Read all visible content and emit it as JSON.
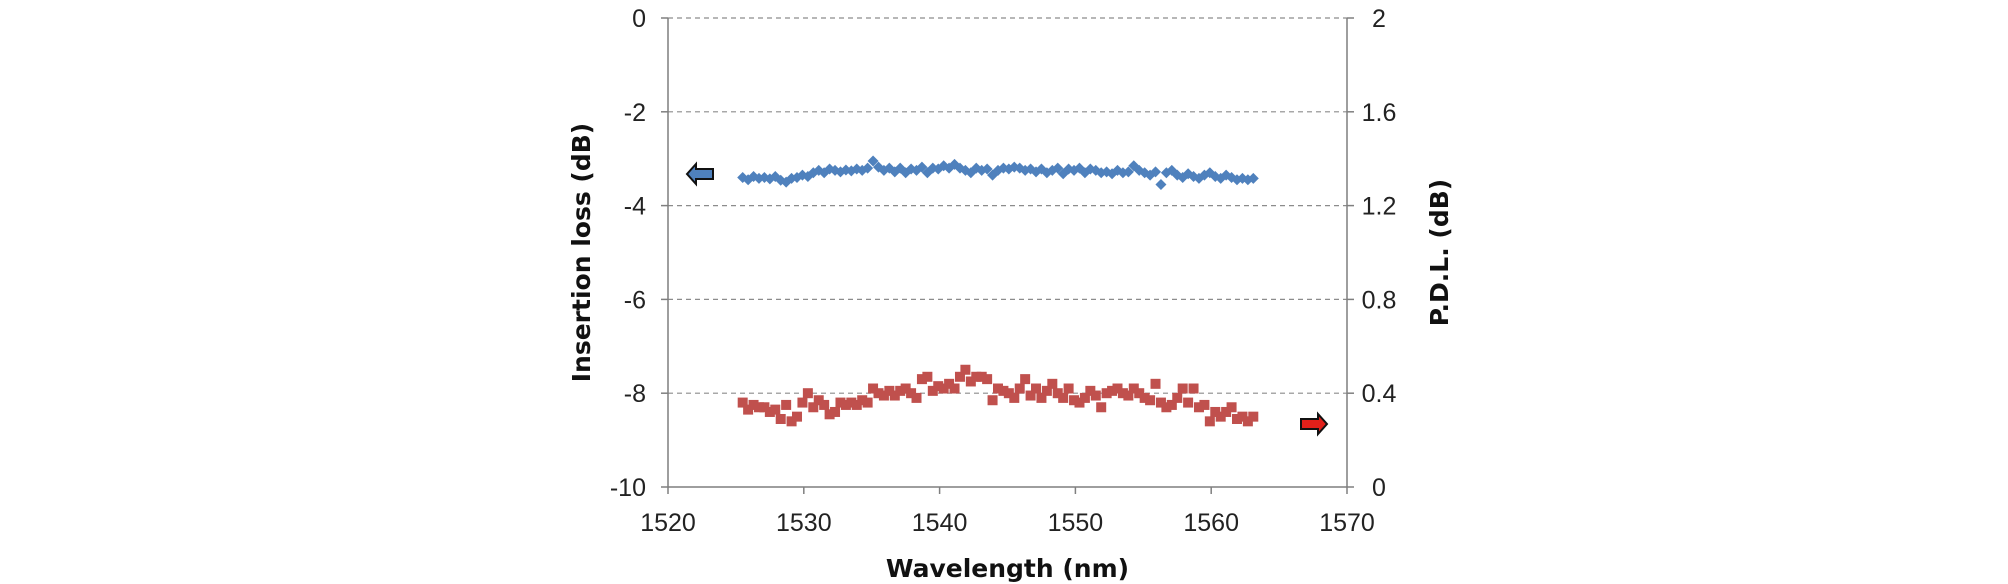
{
  "chart_data": {
    "type": "scatter",
    "title": "",
    "xlabel": "Wavelength (nm)",
    "ylabel": "Insertion loss (dB)",
    "y2label": "P.D.L. (dB)",
    "xlim": [
      1520,
      1570
    ],
    "ylim": [
      -10,
      0
    ],
    "y2lim": [
      0,
      2
    ],
    "xticks": [
      "1520",
      "1530",
      "1540",
      "1550",
      "1560",
      "1570"
    ],
    "yticks": [
      "0",
      "-2",
      "-4",
      "-6",
      "-8",
      "-10"
    ],
    "y2ticks": [
      "2",
      "1.6",
      "1.2",
      "0.8",
      "0.4",
      "0"
    ],
    "grid": "horizontal dashed",
    "legend": "none; arrows point to axes",
    "series": [
      {
        "axis": "left",
        "marker": "diamond",
        "color": "#4f81bd",
        "arrow_direction": "left",
        "x": [
          1525.5,
          1525.9,
          1526.3,
          1526.7,
          1527.1,
          1527.5,
          1527.9,
          1528.3,
          1528.7,
          1529.1,
          1529.5,
          1529.9,
          1530.3,
          1530.7,
          1531.1,
          1531.5,
          1531.9,
          1532.3,
          1532.7,
          1533.1,
          1533.5,
          1533.9,
          1534.3,
          1534.7,
          1535.1,
          1535.5,
          1535.9,
          1536.3,
          1536.7,
          1537.1,
          1537.5,
          1537.9,
          1538.3,
          1538.7,
          1539.1,
          1539.5,
          1539.9,
          1540.3,
          1540.7,
          1541.1,
          1541.5,
          1541.9,
          1542.3,
          1542.7,
          1543.1,
          1543.5,
          1543.9,
          1544.3,
          1544.7,
          1545.1,
          1545.5,
          1545.9,
          1546.3,
          1546.7,
          1547.1,
          1547.5,
          1547.9,
          1548.3,
          1548.7,
          1549.1,
          1549.5,
          1549.9,
          1550.3,
          1550.7,
          1551.1,
          1551.5,
          1551.9,
          1552.3,
          1552.7,
          1553.1,
          1553.5,
          1553.9,
          1554.3,
          1554.7,
          1555.1,
          1555.5,
          1555.9,
          1556.3,
          1556.7,
          1557.1,
          1557.5,
          1557.9,
          1558.3,
          1558.7,
          1559.1,
          1559.5,
          1559.9,
          1560.3,
          1560.7,
          1561.1,
          1561.5,
          1561.9,
          1562.3,
          1562.7,
          1563.1
        ],
        "values": [
          -3.4,
          -3.45,
          -3.38,
          -3.42,
          -3.4,
          -3.43,
          -3.38,
          -3.46,
          -3.5,
          -3.42,
          -3.4,
          -3.35,
          -3.38,
          -3.3,
          -3.25,
          -3.3,
          -3.22,
          -3.25,
          -3.28,
          -3.24,
          -3.26,
          -3.22,
          -3.25,
          -3.2,
          -3.05,
          -3.18,
          -3.25,
          -3.2,
          -3.28,
          -3.2,
          -3.3,
          -3.22,
          -3.25,
          -3.18,
          -3.3,
          -3.2,
          -3.22,
          -3.15,
          -3.2,
          -3.12,
          -3.2,
          -3.25,
          -3.3,
          -3.2,
          -3.25,
          -3.22,
          -3.35,
          -3.25,
          -3.2,
          -3.22,
          -3.18,
          -3.2,
          -3.25,
          -3.22,
          -3.28,
          -3.22,
          -3.3,
          -3.25,
          -3.2,
          -3.32,
          -3.22,
          -3.25,
          -3.2,
          -3.3,
          -3.22,
          -3.25,
          -3.3,
          -3.28,
          -3.32,
          -3.25,
          -3.3,
          -3.28,
          -3.15,
          -3.25,
          -3.3,
          -3.35,
          -3.28,
          -3.55,
          -3.3,
          -3.25,
          -3.35,
          -3.4,
          -3.32,
          -3.38,
          -3.42,
          -3.35,
          -3.3,
          -3.38,
          -3.42,
          -3.35,
          -3.4,
          -3.45,
          -3.42,
          -3.45,
          -3.42
        ]
      },
      {
        "axis": "right",
        "marker": "square",
        "color": "#c0504d",
        "arrow_direction": "right",
        "x": [
          1525.5,
          1525.9,
          1526.3,
          1526.7,
          1527.1,
          1527.5,
          1527.9,
          1528.3,
          1528.7,
          1529.1,
          1529.5,
          1529.9,
          1530.3,
          1530.7,
          1531.1,
          1531.5,
          1531.9,
          1532.3,
          1532.7,
          1533.1,
          1533.5,
          1533.9,
          1534.3,
          1534.7,
          1535.1,
          1535.5,
          1535.9,
          1536.3,
          1536.7,
          1537.1,
          1537.5,
          1537.9,
          1538.3,
          1538.7,
          1539.1,
          1539.5,
          1539.9,
          1540.3,
          1540.7,
          1541.1,
          1541.5,
          1541.9,
          1542.3,
          1542.7,
          1543.1,
          1543.5,
          1543.9,
          1544.3,
          1544.7,
          1545.1,
          1545.5,
          1545.9,
          1546.3,
          1546.7,
          1547.1,
          1547.5,
          1547.9,
          1548.3,
          1548.7,
          1549.1,
          1549.5,
          1549.9,
          1550.3,
          1550.7,
          1551.1,
          1551.5,
          1551.9,
          1552.3,
          1552.7,
          1553.1,
          1553.5,
          1553.9,
          1554.3,
          1554.7,
          1555.1,
          1555.5,
          1555.9,
          1556.3,
          1556.7,
          1557.1,
          1557.5,
          1557.9,
          1558.3,
          1558.7,
          1559.1,
          1559.5,
          1559.9,
          1560.3,
          1560.7,
          1561.1,
          1561.5,
          1561.9,
          1562.3,
          1562.7,
          1563.1
        ],
        "values": [
          0.36,
          0.33,
          0.35,
          0.34,
          0.34,
          0.32,
          0.33,
          0.29,
          0.35,
          0.28,
          0.3,
          0.36,
          0.4,
          0.34,
          0.37,
          0.35,
          0.31,
          0.32,
          0.36,
          0.35,
          0.36,
          0.35,
          0.37,
          0.36,
          0.42,
          0.4,
          0.39,
          0.41,
          0.39,
          0.41,
          0.42,
          0.4,
          0.38,
          0.46,
          0.47,
          0.41,
          0.43,
          0.42,
          0.44,
          0.42,
          0.47,
          0.5,
          0.45,
          0.47,
          0.47,
          0.46,
          0.37,
          0.42,
          0.41,
          0.4,
          0.38,
          0.42,
          0.46,
          0.39,
          0.42,
          0.38,
          0.41,
          0.44,
          0.4,
          0.38,
          0.42,
          0.37,
          0.36,
          0.38,
          0.41,
          0.39,
          0.34,
          0.4,
          0.41,
          0.42,
          0.4,
          0.39,
          0.42,
          0.4,
          0.38,
          0.37,
          0.44,
          0.36,
          0.34,
          0.35,
          0.38,
          0.42,
          0.36,
          0.42,
          0.34,
          0.35,
          0.28,
          0.32,
          0.3,
          0.32,
          0.34,
          0.29,
          0.3,
          0.28,
          0.3
        ]
      }
    ]
  }
}
